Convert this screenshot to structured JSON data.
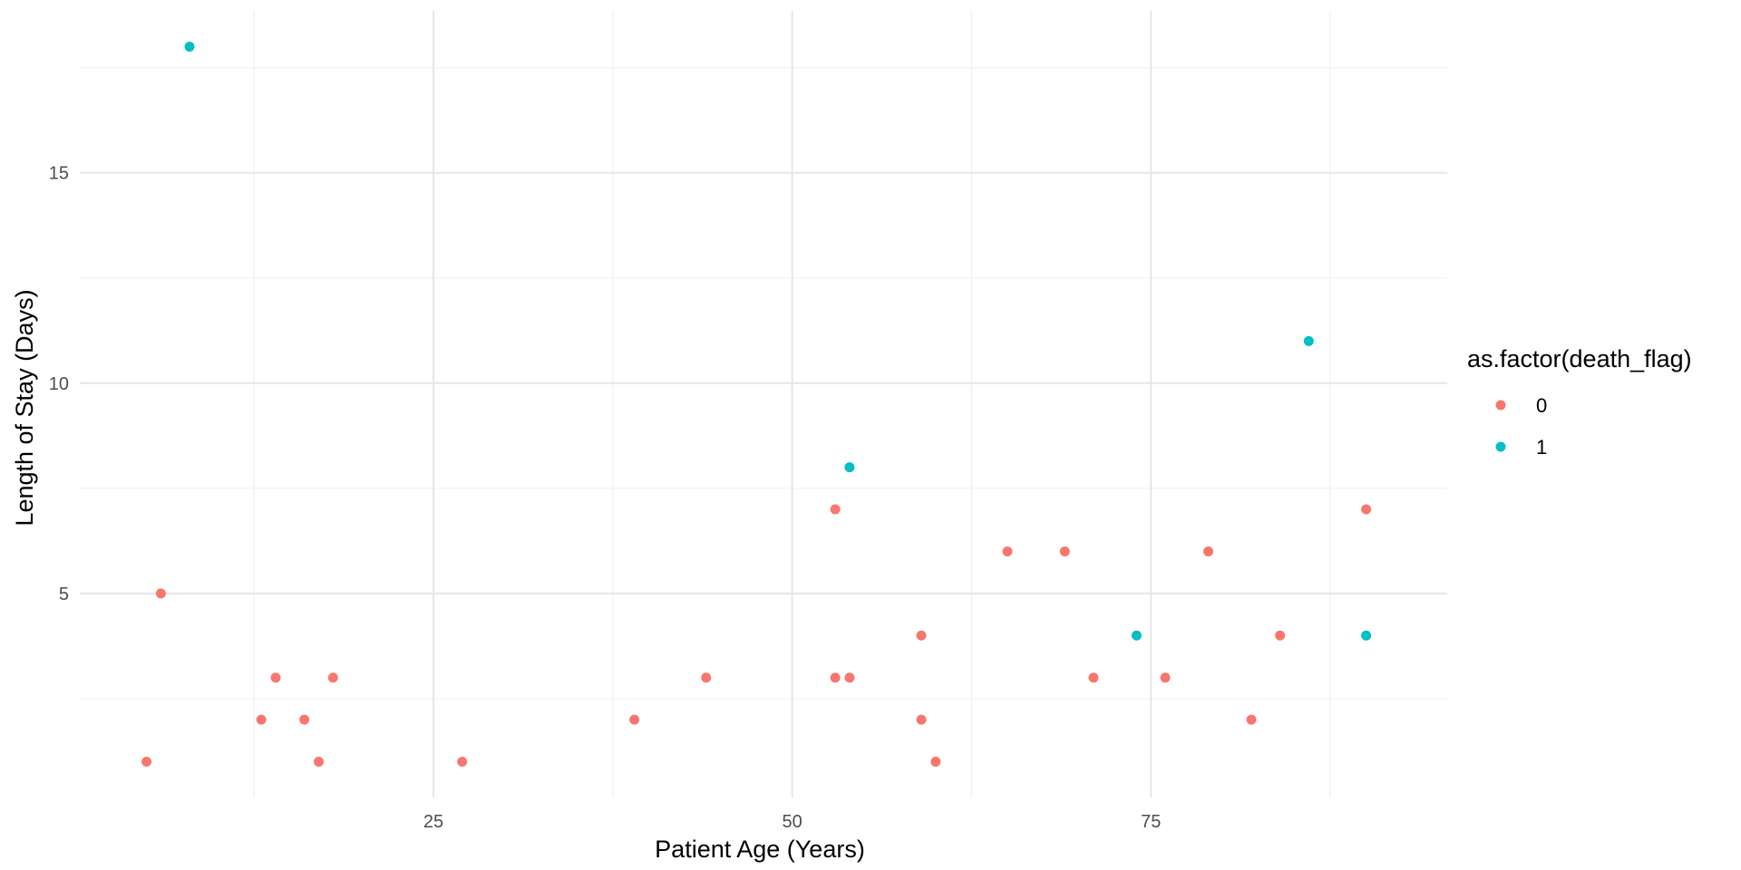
{
  "chart_data": {
    "type": "scatter",
    "title": "",
    "xlabel": "Patient Age (Years)",
    "ylabel": "Length of Stay (Days)",
    "xlim": [
      0.35,
      95.65
    ],
    "ylim": [
      0.15,
      18.85
    ],
    "x_ticks": [
      25,
      50,
      75
    ],
    "x_minor_ticks": [
      12.5,
      37.5,
      62.5,
      87.5
    ],
    "y_ticks": [
      5,
      10,
      15
    ],
    "y_minor_ticks": [
      2.5,
      7.5,
      12.5,
      17.5
    ],
    "x_tick_labels": [
      "25",
      "50",
      "75"
    ],
    "y_tick_labels": [
      "5",
      "10",
      "15"
    ],
    "grid": true,
    "legend": {
      "title": "as.factor(death_flag)",
      "placement": "right"
    },
    "series": [
      {
        "name": "0",
        "color": "#F8766D",
        "points": [
          {
            "x": 5,
            "y": 1
          },
          {
            "x": 6,
            "y": 5
          },
          {
            "x": 13,
            "y": 2
          },
          {
            "x": 14,
            "y": 3
          },
          {
            "x": 16,
            "y": 2
          },
          {
            "x": 17,
            "y": 1
          },
          {
            "x": 18,
            "y": 3
          },
          {
            "x": 27,
            "y": 1
          },
          {
            "x": 39,
            "y": 2
          },
          {
            "x": 44,
            "y": 3
          },
          {
            "x": 53,
            "y": 3
          },
          {
            "x": 53,
            "y": 7
          },
          {
            "x": 54,
            "y": 3
          },
          {
            "x": 59,
            "y": 2
          },
          {
            "x": 59,
            "y": 4
          },
          {
            "x": 60,
            "y": 1
          },
          {
            "x": 65,
            "y": 6
          },
          {
            "x": 69,
            "y": 6
          },
          {
            "x": 71,
            "y": 3
          },
          {
            "x": 76,
            "y": 3
          },
          {
            "x": 79,
            "y": 6
          },
          {
            "x": 82,
            "y": 2
          },
          {
            "x": 84,
            "y": 4
          },
          {
            "x": 90,
            "y": 7
          }
        ]
      },
      {
        "name": "1",
        "color": "#00BFC4",
        "points": [
          {
            "x": 8,
            "y": 18
          },
          {
            "x": 54,
            "y": 8
          },
          {
            "x": 74,
            "y": 4
          },
          {
            "x": 86,
            "y": 11
          },
          {
            "x": 90,
            "y": 4
          }
        ]
      }
    ]
  }
}
